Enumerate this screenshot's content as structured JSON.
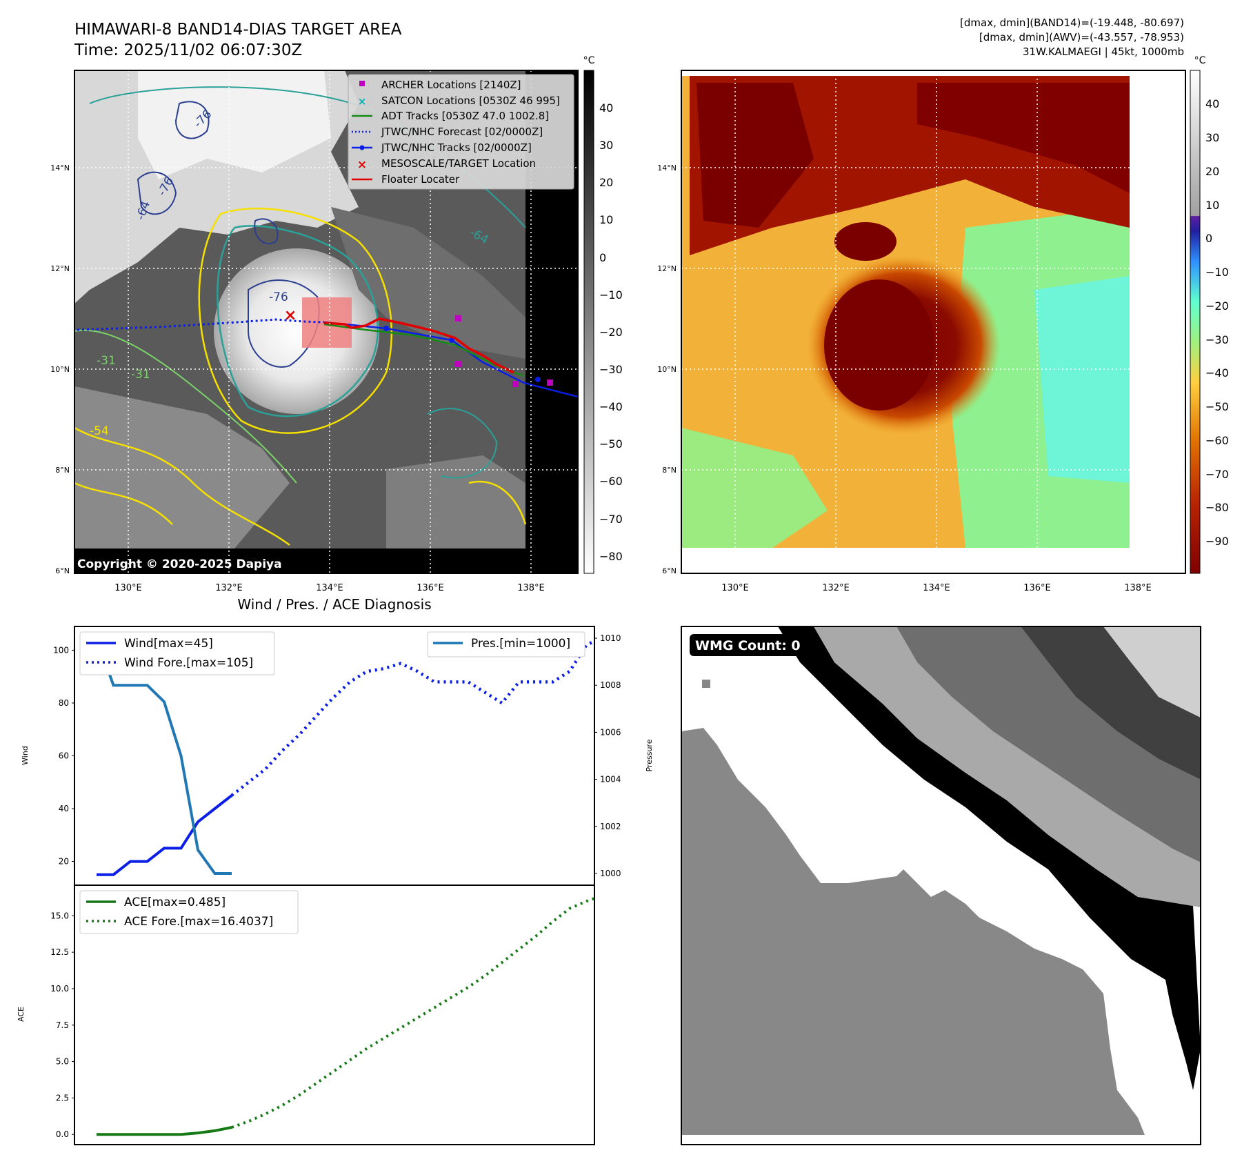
{
  "header": {
    "title": "HIMAWARI-8 BAND14-DIAS TARGET AREA",
    "time": "Time: 2025/11/02 06:07:30Z",
    "dmax_band14": "[dmax, dmin](BAND14)=(-19.448, -80.697)",
    "dmax_awv": "[dmax, dmin](AWV)=(-43.557, -78.953)",
    "storm_info": "31W.KALMAEGI | 45kt, 1000mb"
  },
  "map": {
    "lon_ticks": [
      "130°E",
      "132°E",
      "134°E",
      "136°E",
      "138°E"
    ],
    "lat_ticks": [
      "14°N",
      "12°N",
      "10°N",
      "8°N",
      "6°N"
    ],
    "contour_labels": [
      "-76",
      "-76",
      "-64",
      "-76",
      "-64",
      "-31",
      "-31",
      "-54"
    ],
    "copyright": "Copyright © 2020-2025 Dapiya",
    "legend": [
      "ARCHER Locations [2140Z]",
      "SATCON Locations [0530Z 46 995]",
      "ADT Tracks [0530Z 47.0 1002.8]",
      "JTWC/NHC Forecast [02/0000Z]",
      "JTWC/NHC Tracks [02/0000Z]",
      "MESOSCALE/TARGET Location",
      "Floater Locater"
    ],
    "colorbar_unit": "°C",
    "colorbar_ticks": [
      "40",
      "30",
      "20",
      "10",
      "0",
      "−10",
      "−20",
      "−30",
      "−40",
      "−50",
      "−60",
      "−70",
      "−80"
    ]
  },
  "awv": {
    "colorbar_unit": "°C",
    "colorbar_ticks": [
      "40",
      "30",
      "20",
      "10",
      "0",
      "−10",
      "−20",
      "−30",
      "−40",
      "−50",
      "−60",
      "−70",
      "−80",
      "−90"
    ],
    "lon_ticks": [
      "130°E",
      "132°E",
      "134°E",
      "136°E",
      "138°E"
    ],
    "lat_ticks": [
      "14°N",
      "12°N",
      "10°N",
      "8°N",
      "6°N"
    ]
  },
  "wmg": {
    "label": "WMG Count: 0"
  },
  "colors": {
    "wind": "#0a1ee6",
    "pressure": "#1f77b4",
    "ace": "#157a15",
    "archer": "#c000c0",
    "satcon": "#00b3b3",
    "target": "#e00000"
  },
  "chart_data": [
    {
      "type": "line",
      "title": "Wind / Pres. / ACE Diagnosis",
      "ylabel": "Wind",
      "y2label": "Pressure",
      "ylim": [
        11,
        109
      ],
      "y2lim": [
        999.5,
        1010.5
      ],
      "yticks": [
        "100",
        "80",
        "60",
        "40",
        "20"
      ],
      "y2ticks": [
        "1010",
        "1008",
        "1006",
        "1004",
        "1002",
        "1000"
      ],
      "series": [
        {
          "name": "Wind[max=45]",
          "style": "solid",
          "x": [
            0,
            1,
            2,
            3,
            4,
            5,
            6,
            7,
            8
          ],
          "values": [
            15,
            15,
            20,
            20,
            25,
            25,
            35,
            40,
            45
          ]
        },
        {
          "name": "Wind Fore.[max=105]",
          "style": "dotted",
          "x": [
            8,
            9,
            10,
            11,
            12,
            13,
            14,
            15,
            16,
            17,
            18,
            19,
            20,
            21,
            22,
            23,
            24,
            25,
            26,
            27,
            28,
            29,
            30
          ],
          "values": [
            45,
            50,
            55,
            62,
            68,
            75,
            82,
            88,
            92,
            93,
            95,
            92,
            88,
            88,
            88,
            84,
            80,
            88,
            88,
            88,
            92,
            102,
            105
          ]
        },
        {
          "name": "Pres.[min=1000]",
          "style": "solid",
          "axis": "right",
          "x": [
            0,
            1,
            2,
            3,
            4,
            5,
            6,
            7,
            8
          ],
          "values": [
            1010,
            1008,
            1008,
            1008,
            1007.3,
            1005,
            1001,
            1000,
            1000
          ]
        }
      ]
    },
    {
      "type": "line",
      "ylabel": "ACE",
      "ylim": [
        -0.7,
        17.1
      ],
      "yticks": [
        "15.0",
        "12.5",
        "10.0",
        "7.5",
        "5.0",
        "2.5",
        "0.0"
      ],
      "series": [
        {
          "name": "ACE[max=0.485]",
          "style": "solid",
          "x": [
            0,
            1,
            2,
            3,
            4,
            5,
            6,
            7,
            8
          ],
          "values": [
            0,
            0,
            0,
            0,
            0,
            0,
            0.1,
            0.25,
            0.485
          ]
        },
        {
          "name": "ACE Fore.[max=16.4037]",
          "style": "dotted",
          "x": [
            8,
            9,
            10,
            11,
            12,
            13,
            14,
            15,
            16,
            17,
            18,
            19,
            20,
            21,
            22,
            23,
            24,
            25,
            26,
            27,
            28,
            29,
            30
          ],
          "values": [
            0.485,
            0.9,
            1.4,
            2.0,
            2.7,
            3.5,
            4.3,
            5.1,
            5.9,
            6.6,
            7.3,
            8.0,
            8.7,
            9.4,
            10.1,
            10.9,
            11.8,
            12.7,
            13.6,
            14.6,
            15.5,
            16.0,
            16.4037
          ]
        }
      ]
    }
  ]
}
